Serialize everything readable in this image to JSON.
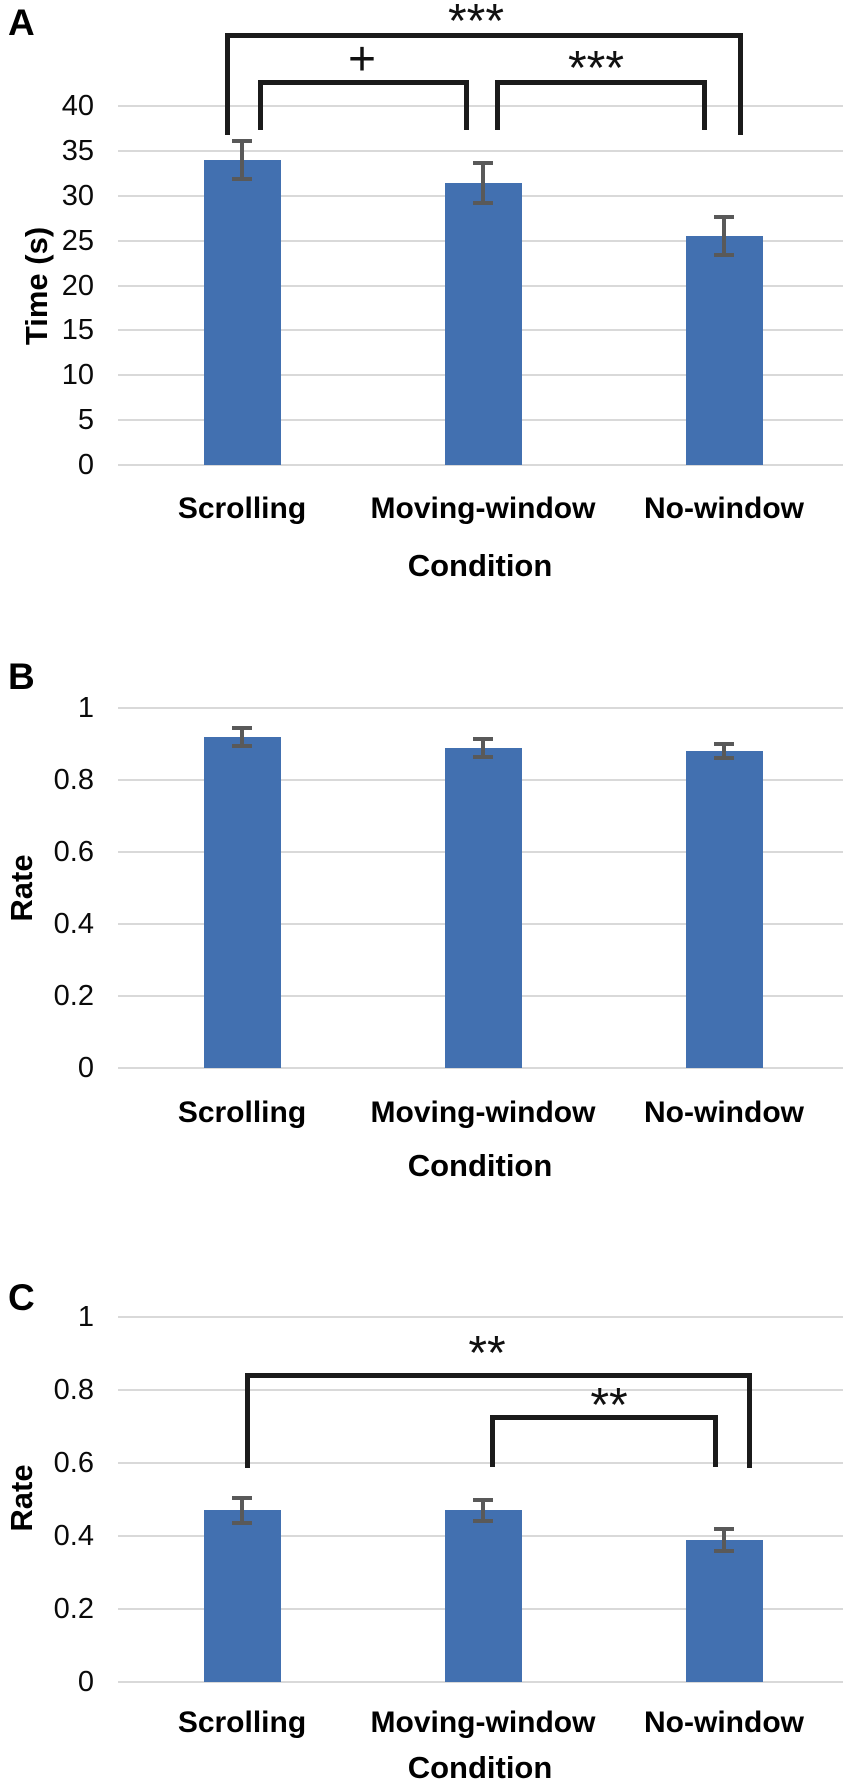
{
  "figure": {
    "description": "Three-panel bar figure comparing reading conditions",
    "categories": [
      "Scrolling",
      "Moving-window",
      "No-window"
    ],
    "xlabel": "Condition",
    "colors": {
      "bar": "#4270B0",
      "error_bar": "#595959",
      "gridline": "#D9D9D9",
      "bracket": "#1B1B1B",
      "text": "#000000"
    }
  },
  "panels": {
    "A": {
      "letter": "A",
      "ylabel": "Time (s)",
      "xlabel": "Condition"
    },
    "B": {
      "letter": "B",
      "ylabel": "Rate",
      "xlabel": "Condition"
    },
    "C": {
      "letter": "C",
      "ylabel": "Rate",
      "xlabel": "Condition"
    }
  },
  "chart_data": [
    {
      "panel": "A",
      "type": "bar",
      "title": "",
      "ylabel": "Time (s)",
      "xlabel": "Condition",
      "categories": [
        "Scrolling",
        "Moving-window",
        "No-window"
      ],
      "values": [
        34.0,
        31.4,
        25.5
      ],
      "errors": [
        2.1,
        2.2,
        2.1
      ],
      "ylim": [
        0,
        40
      ],
      "yticks": [
        0,
        5,
        10,
        15,
        20,
        25,
        30,
        35,
        40
      ],
      "ytick_labels": [
        "0",
        "5",
        "10",
        "15",
        "20",
        "25",
        "30",
        "35",
        "40"
      ],
      "grid": true,
      "legend": false,
      "significance": [
        {
          "pair": [
            "Scrolling",
            "No-window"
          ],
          "symbol": "***"
        },
        {
          "pair": [
            "Scrolling",
            "Moving-window"
          ],
          "symbol": "+"
        },
        {
          "pair": [
            "Moving-window",
            "No-window"
          ],
          "symbol": "***"
        }
      ]
    },
    {
      "panel": "B",
      "type": "bar",
      "title": "",
      "ylabel": "Rate",
      "xlabel": "Condition",
      "categories": [
        "Scrolling",
        "Moving-window",
        "No-window"
      ],
      "values": [
        0.92,
        0.89,
        0.88
      ],
      "errors": [
        0.025,
        0.025,
        0.02
      ],
      "ylim": [
        0,
        1
      ],
      "yticks": [
        0,
        0.2,
        0.4,
        0.6,
        0.8,
        1
      ],
      "ytick_labels": [
        "0",
        "0.2",
        "0.4",
        "0.6",
        "0.8",
        "1"
      ],
      "grid": true,
      "legend": false,
      "significance": []
    },
    {
      "panel": "C",
      "type": "bar",
      "title": "",
      "ylabel": "Rate",
      "xlabel": "Condition",
      "categories": [
        "Scrolling",
        "Moving-window",
        "No-window"
      ],
      "values": [
        0.47,
        0.47,
        0.39
      ],
      "errors": [
        0.035,
        0.03,
        0.03
      ],
      "ylim": [
        0,
        1
      ],
      "yticks": [
        0,
        0.2,
        0.4,
        0.6,
        0.8,
        1
      ],
      "ytick_labels": [
        "0",
        "0.2",
        "0.4",
        "0.6",
        "0.8",
        "1"
      ],
      "grid": true,
      "legend": false,
      "significance": [
        {
          "pair": [
            "Scrolling",
            "No-window"
          ],
          "symbol": "**"
        },
        {
          "pair": [
            "Moving-window",
            "No-window"
          ],
          "symbol": "**"
        }
      ]
    }
  ]
}
